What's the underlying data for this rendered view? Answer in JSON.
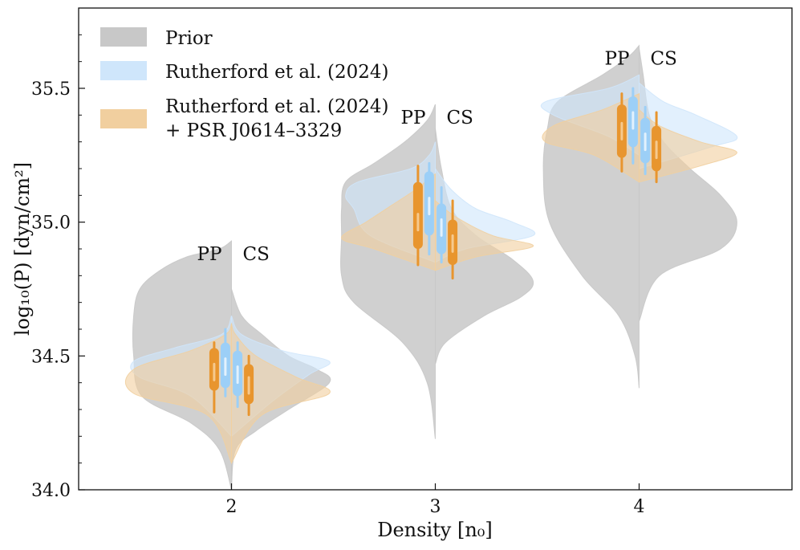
{
  "chart_data": {
    "type": "violin",
    "xlabel": "Density [n₀]",
    "ylabel": "log₁₀(P) [dyn/cm²]",
    "xlim": [
      1.25,
      4.75
    ],
    "ylim": [
      34.0,
      35.8
    ],
    "x_ticks": [
      "2",
      "3",
      "4"
    ],
    "y_ticks": [
      "34.0",
      "34.5",
      "35.0",
      "35.5"
    ],
    "y_minor_step": 0.1,
    "legend": {
      "position": "top-left",
      "entries": [
        {
          "label": "Prior",
          "color": "#c8c8c8"
        },
        {
          "label": "Rutherford et al. (2024)",
          "color": "#cfe6fb"
        },
        {
          "label": "Rutherford et al. (2024)",
          "label2": "+ PSR J0614–3329",
          "color": "#f1cf9f"
        }
      ]
    },
    "side_labels": {
      "left": "PP",
      "right": "CS"
    },
    "colors": {
      "prior": "#c8c8c8",
      "rutherford": "#cfe6fb",
      "psr": "#f1cf9f",
      "rutherford_box": "#9ccff7",
      "psr_box": "#e8952e",
      "psr_median": "#f6c98e",
      "rutherford_median": "#e2f1fd"
    },
    "groups": [
      {
        "density": 2,
        "prior": {
          "pp": [
            [
              34.0,
              0
            ],
            [
              34.15,
              0.06
            ],
            [
              34.25,
              0.2
            ],
            [
              34.35,
              0.44
            ],
            [
              34.5,
              0.48
            ],
            [
              34.65,
              0.48
            ],
            [
              34.75,
              0.45
            ],
            [
              34.82,
              0.35
            ],
            [
              34.87,
              0.22
            ],
            [
              34.9,
              0.06
            ],
            [
              34.93,
              0
            ]
          ],
          "cs": [
            [
              34.0,
              0
            ],
            [
              34.15,
              0.02
            ],
            [
              34.22,
              0.12
            ],
            [
              34.3,
              0.28
            ],
            [
              34.4,
              0.48
            ],
            [
              34.45,
              0.42
            ],
            [
              34.5,
              0.28
            ],
            [
              34.58,
              0.15
            ],
            [
              34.65,
              0.05
            ],
            [
              34.75,
              0
            ]
          ]
        },
        "rutherford": {
          "pp": [
            [
              34.2,
              0
            ],
            [
              34.35,
              0.2
            ],
            [
              34.42,
              0.45
            ],
            [
              34.48,
              0.48
            ],
            [
              34.53,
              0.28
            ],
            [
              34.58,
              0.05
            ],
            [
              34.65,
              0
            ]
          ],
          "cs": [
            [
              34.2,
              0
            ],
            [
              34.33,
              0.2
            ],
            [
              34.43,
              0.38
            ],
            [
              34.48,
              0.48
            ],
            [
              34.52,
              0.25
            ],
            [
              34.58,
              0.05
            ],
            [
              34.65,
              0
            ]
          ]
        },
        "psr": {
          "pp": [
            [
              34.1,
              0
            ],
            [
              34.28,
              0.12
            ],
            [
              34.36,
              0.48
            ],
            [
              34.45,
              0.48
            ],
            [
              34.52,
              0.2
            ],
            [
              34.58,
              0.03
            ],
            [
              34.62,
              0
            ]
          ],
          "cs": [
            [
              34.1,
              0
            ],
            [
              34.28,
              0.15
            ],
            [
              34.36,
              0.48
            ],
            [
              34.42,
              0.32
            ],
            [
              34.5,
              0.12
            ],
            [
              34.58,
              0.02
            ],
            [
              34.62,
              0
            ]
          ]
        },
        "boxes": {
          "pp_psr": {
            "whisker": [
              34.29,
              34.55
            ],
            "box": [
              34.37,
              34.53
            ],
            "median": 34.44
          },
          "pp_rut": {
            "whisker": [
              34.35,
              34.6
            ],
            "box": [
              34.38,
              34.55
            ],
            "median": 34.46
          },
          "cs_rut": {
            "whisker": [
              34.31,
              34.55
            ],
            "box": [
              34.35,
              34.52
            ],
            "median": 34.43
          },
          "cs_psr": {
            "whisker": [
              34.28,
              34.5
            ],
            "box": [
              34.32,
              34.47
            ],
            "median": 34.39
          }
        }
      },
      {
        "density": 3,
        "prior": {
          "pp": [
            [
              34.19,
              0
            ],
            [
              34.4,
              0.04
            ],
            [
              34.55,
              0.16
            ],
            [
              34.7,
              0.4
            ],
            [
              34.8,
              0.46
            ],
            [
              34.95,
              0.46
            ],
            [
              35.05,
              0.46
            ],
            [
              35.15,
              0.44
            ],
            [
              35.22,
              0.3
            ],
            [
              35.3,
              0.15
            ],
            [
              35.38,
              0.04
            ],
            [
              35.44,
              0
            ]
          ],
          "cs": [
            [
              34.47,
              0
            ],
            [
              34.55,
              0.05
            ],
            [
              34.65,
              0.24
            ],
            [
              34.72,
              0.42
            ],
            [
              34.78,
              0.48
            ],
            [
              34.86,
              0.38
            ],
            [
              34.95,
              0.2
            ],
            [
              35.05,
              0.08
            ],
            [
              35.2,
              0.03
            ],
            [
              35.35,
              0
            ]
          ]
        },
        "rutherford": {
          "pp": [
            [
              34.85,
              0
            ],
            [
              34.95,
              0.32
            ],
            [
              35.05,
              0.4
            ],
            [
              35.1,
              0.44
            ],
            [
              35.15,
              0.38
            ],
            [
              35.2,
              0.12
            ],
            [
              35.25,
              0.03
            ],
            [
              35.3,
              0
            ]
          ],
          "cs": [
            [
              34.85,
              0
            ],
            [
              34.9,
              0.15
            ],
            [
              34.95,
              0.48
            ],
            [
              35.0,
              0.38
            ],
            [
              35.05,
              0.2
            ],
            [
              35.12,
              0.08
            ],
            [
              35.2,
              0
            ]
          ]
        },
        "psr": {
          "pp": [
            [
              34.82,
              0
            ],
            [
              34.9,
              0.3
            ],
            [
              34.94,
              0.46
            ],
            [
              35.0,
              0.34
            ],
            [
              35.06,
              0.22
            ],
            [
              35.12,
              0.1
            ],
            [
              35.18,
              0
            ]
          ],
          "cs": [
            [
              34.82,
              0
            ],
            [
              34.87,
              0.2
            ],
            [
              34.91,
              0.48
            ],
            [
              34.95,
              0.28
            ],
            [
              35.02,
              0.1
            ],
            [
              35.08,
              0
            ]
          ]
        },
        "boxes": {
          "pp_psr": {
            "whisker": [
              34.84,
              35.21
            ],
            "box": [
              34.9,
              35.15
            ],
            "median": 35.0
          },
          "pp_rut": {
            "whisker": [
              34.88,
              35.22
            ],
            "box": [
              34.95,
              35.19
            ],
            "median": 35.06
          },
          "cs_rut": {
            "whisker": [
              34.85,
              35.13
            ],
            "box": [
              34.88,
              35.07
            ],
            "median": 34.98
          },
          "cs_psr": {
            "whisker": [
              34.79,
              35.08
            ],
            "box": [
              34.84,
              35.01
            ],
            "median": 34.92
          }
        }
      },
      {
        "density": 4,
        "prior": {
          "pp": [
            [
              34.38,
              0
            ],
            [
              34.5,
              0.02
            ],
            [
              34.65,
              0.1
            ],
            [
              34.8,
              0.28
            ],
            [
              35.0,
              0.44
            ],
            [
              35.2,
              0.47
            ],
            [
              35.35,
              0.45
            ],
            [
              35.45,
              0.4
            ],
            [
              35.55,
              0.18
            ],
            [
              35.62,
              0.05
            ],
            [
              35.66,
              0
            ]
          ],
          "cs": [
            [
              34.63,
              0
            ],
            [
              34.8,
              0.1
            ],
            [
              34.9,
              0.4
            ],
            [
              35.0,
              0.48
            ],
            [
              35.1,
              0.4
            ],
            [
              35.2,
              0.25
            ],
            [
              35.3,
              0.12
            ],
            [
              35.4,
              0.05
            ],
            [
              35.55,
              0.02
            ],
            [
              35.65,
              0
            ]
          ]
        },
        "rutherford": {
          "pp": [
            [
              35.25,
              0
            ],
            [
              35.32,
              0.15
            ],
            [
              35.4,
              0.42
            ],
            [
              35.45,
              0.46
            ],
            [
              35.5,
              0.15
            ],
            [
              35.55,
              0
            ]
          ],
          "cs": [
            [
              35.2,
              0
            ],
            [
              35.28,
              0.35
            ],
            [
              35.32,
              0.48
            ],
            [
              35.4,
              0.28
            ],
            [
              35.45,
              0.12
            ],
            [
              35.52,
              0
            ]
          ]
        },
        "psr": {
          "pp": [
            [
              35.15,
              0
            ],
            [
              35.25,
              0.22
            ],
            [
              35.3,
              0.46
            ],
            [
              35.36,
              0.42
            ],
            [
              35.42,
              0.18
            ],
            [
              35.48,
              0
            ]
          ],
          "cs": [
            [
              35.15,
              0
            ],
            [
              35.21,
              0.3
            ],
            [
              35.26,
              0.48
            ],
            [
              35.3,
              0.3
            ],
            [
              35.36,
              0.1
            ],
            [
              35.42,
              0
            ]
          ]
        },
        "boxes": {
          "pp_psr": {
            "whisker": [
              35.19,
              35.48
            ],
            "box": [
              35.24,
              35.44
            ],
            "median": 35.34
          },
          "pp_rut": {
            "whisker": [
              35.22,
              35.5
            ],
            "box": [
              35.28,
              35.47
            ],
            "median": 35.38
          },
          "cs_rut": {
            "whisker": [
              35.18,
              35.43
            ],
            "box": [
              35.22,
              35.39
            ],
            "median": 35.3
          },
          "cs_psr": {
            "whisker": [
              35.15,
              35.41
            ],
            "box": [
              35.19,
              35.36
            ],
            "median": 35.27
          }
        }
      }
    ]
  }
}
